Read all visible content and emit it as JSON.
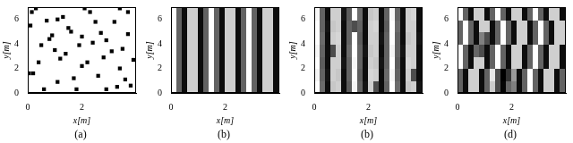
{
  "chart_data": [
    {
      "type": "scatter",
      "caption": "(a)",
      "x_label": "x[m]",
      "y_label": "y[m]",
      "xlim": [
        0,
        4
      ],
      "ylim": [
        0,
        7
      ],
      "xticks": [
        0,
        2
      ],
      "yticks": [
        0,
        2,
        4,
        6
      ],
      "grid": false,
      "color": "#000000",
      "marker": "square",
      "x": [
        0.15,
        0.1,
        0.2,
        0.05,
        0.6,
        0.8,
        0.9,
        0.7,
        1.1,
        1.3,
        1.5,
        1.0,
        1.2,
        0.4,
        1.7,
        1.8,
        2.0,
        1.9,
        2.1,
        2.3,
        2.5,
        2.7,
        2.4,
        2.9,
        3.1,
        2.8,
        2.2,
        3.4,
        3.6,
        2.9,
        3.3,
        3.8,
        3.5,
        3.7,
        3.2,
        3.7,
        3.4,
        0.5,
        1.4,
        2.6,
        1.1,
        0.3,
        3.9,
        2.0,
        1.6
      ],
      "y": [
        6.6,
        5.5,
        1.6,
        1.6,
        0.3,
        4.4,
        4.7,
        5.9,
        6.0,
        6.2,
        5.3,
        3.5,
        2.8,
        2.5,
        1.2,
        0.3,
        2.2,
        3.9,
        6.9,
        6.6,
        5.8,
        4.9,
        4.1,
        4.3,
        3.4,
        2.9,
        2.5,
        2.0,
        1.1,
        0.3,
        0.5,
        0.6,
        3.6,
        4.8,
        5.8,
        6.6,
        6.9,
        3.9,
        3.2,
        1.4,
        0.9,
        6.9,
        2.7,
        4.6,
        5.0
      ]
    },
    {
      "type": "heatmap",
      "caption": "(b)",
      "x_label": "x[m]",
      "y_label": "y[m]",
      "xlim": [
        0,
        4
      ],
      "ylim": [
        0,
        7
      ],
      "xticks": [
        0,
        2
      ],
      "yticks": [
        0,
        2,
        4,
        6
      ],
      "grid": false,
      "x_edges": [
        0,
        0.2,
        0.4,
        0.6,
        0.8,
        1.0,
        1.2,
        1.4,
        1.6,
        1.8,
        2.0,
        2.2,
        2.4,
        2.6,
        2.8,
        3.0,
        3.2,
        3.4,
        3.6,
        3.8,
        4.0
      ],
      "y_edges": [
        0,
        7
      ],
      "clim": [
        0,
        1
      ],
      "cells": [
        [
          1,
          0.39,
          0.05,
          0.81,
          0.81,
          0.05,
          0.39,
          1,
          0.39,
          0.05,
          0.81,
          0.81,
          0.05,
          0.39,
          1,
          0.39,
          0.05,
          0.81,
          0.81,
          0.05
        ]
      ]
    },
    {
      "type": "heatmap",
      "caption": "(b)",
      "x_label": "x[m]",
      "y_label": "y[m]",
      "xlim": [
        0,
        4
      ],
      "ylim": [
        0,
        7
      ],
      "xticks": [
        0,
        2
      ],
      "yticks": [
        0,
        2,
        4,
        6
      ],
      "grid": false,
      "x_edges": [
        0,
        0.2,
        0.4,
        0.6,
        0.8,
        1.0,
        1.2,
        1.4,
        1.6,
        1.8,
        2.0,
        2.2,
        2.4,
        2.6,
        2.8,
        3.0,
        3.2,
        3.4,
        3.6,
        3.8,
        4.0
      ],
      "y_edges": [
        0,
        1,
        2,
        3,
        4,
        5,
        6,
        7
      ],
      "clim": [
        0,
        1
      ],
      "cells": [
        [
          1,
          0.42,
          0.05,
          0.78,
          0.81,
          0.05,
          0.36,
          0.97,
          0.39,
          0.08,
          0.81,
          0.3,
          0.05,
          0.39,
          1,
          0.42,
          0.05,
          0.78,
          0.81,
          0.08
        ],
        [
          0.96,
          0.39,
          0.08,
          0.81,
          0.78,
          0.05,
          0.39,
          1,
          0.36,
          0.05,
          0.84,
          0.81,
          0.05,
          0.42,
          0.97,
          0.39,
          0.05,
          0.81,
          0.3,
          0.05
        ],
        [
          1,
          0.36,
          0.05,
          0.81,
          0.81,
          0.08,
          0.39,
          0.97,
          0.39,
          0.05,
          0.81,
          0.78,
          0.08,
          0.39,
          1,
          0.36,
          0.05,
          0.84,
          0.81,
          0.05
        ],
        [
          0.97,
          0.39,
          0.05,
          0.3,
          0.81,
          0.05,
          0.42,
          1,
          0.39,
          0.08,
          0.78,
          0.81,
          0.05,
          0.39,
          0.96,
          0.39,
          0.08,
          0.81,
          0.81,
          0.05
        ],
        [
          1,
          0.42,
          0.05,
          0.81,
          0.84,
          0.05,
          0.39,
          1,
          0.36,
          0.05,
          0.81,
          0.81,
          0.08,
          0.39,
          1,
          0.39,
          0.05,
          0.78,
          0.81,
          0.08
        ],
        [
          1,
          0.39,
          0.08,
          0.78,
          0.81,
          0.05,
          0.39,
          0.3,
          0.39,
          0.05,
          0.81,
          0.84,
          0.05,
          0.36,
          1,
          0.42,
          0.05,
          0.81,
          0.81,
          0.05
        ],
        [
          0.97,
          0.39,
          0.05,
          0.81,
          0.81,
          0.08,
          0.36,
          1,
          0.42,
          0.05,
          0.78,
          0.81,
          0.05,
          0.39,
          0.97,
          0.39,
          0.05,
          0.81,
          0.84,
          0.05
        ]
      ]
    },
    {
      "type": "heatmap",
      "caption": "(d)",
      "x_label": "x[m]",
      "y_label": "y[m]",
      "xlim": [
        0,
        4
      ],
      "ylim": [
        0,
        7
      ],
      "xticks": [
        0,
        2
      ],
      "yticks": [
        0,
        2,
        4,
        6
      ],
      "grid": false,
      "x_edges": [
        0,
        0.2,
        0.4,
        0.6,
        0.8,
        1.0,
        1.2,
        1.4,
        1.6,
        1.8,
        2.0,
        2.2,
        2.4,
        2.6,
        2.8,
        3.0,
        3.2,
        3.4,
        3.6,
        3.8,
        4.0
      ],
      "y_edges": [
        0,
        1,
        2,
        3,
        4,
        5,
        6,
        7
      ],
      "clim": [
        0,
        1
      ],
      "cells": [
        [
          0.39,
          0.05,
          0.81,
          0.81,
          0.05,
          0.39,
          0.8,
          0.3,
          0.02,
          0.4,
          0.5,
          0.05,
          0.39,
          1,
          0.39,
          0.05,
          0.81,
          0.81,
          0.05,
          0.39
        ],
        [
          0.39,
          0.05,
          0.81,
          0.81,
          0.05,
          0.39,
          0.9,
          0.3,
          0,
          0.2,
          0.6,
          0.05,
          0.39,
          1,
          0.39,
          0.05,
          0.81,
          0.81,
          0.05,
          0.39
        ],
        [
          1,
          0.39,
          0.05,
          0.81,
          0.81,
          0.05,
          0.39,
          1,
          0.39,
          0.05,
          0.81,
          0.81,
          0.05,
          0.39,
          1,
          0.39,
          0.05,
          0.81,
          0.81,
          0.05
        ],
        [
          1,
          0.39,
          0.05,
          0.4,
          0.3,
          0.05,
          0.39,
          1,
          0.39,
          0.05,
          0.81,
          0.81,
          0.05,
          0.39,
          1,
          0.39,
          0.05,
          0.81,
          0.81,
          0.05
        ],
        [
          0.39,
          1,
          0.39,
          0.05,
          0.5,
          0.3,
          0.05,
          0.39,
          1,
          0.39,
          0.05,
          0.81,
          0.81,
          0.05,
          0.39,
          1,
          0.39,
          0.05,
          0.81,
          0.81
        ],
        [
          0.39,
          1,
          0.39,
          0.05,
          0.81,
          0.81,
          0.05,
          0.39,
          1,
          0.39,
          0.05,
          0.81,
          0.81,
          0.05,
          0.39,
          1,
          0.39,
          0.05,
          0.81,
          0.81
        ],
        [
          1,
          0.39,
          0.05,
          0.81,
          0.81,
          0.05,
          0.39,
          1,
          0.39,
          0.05,
          0.81,
          0.81,
          0.05,
          0.39,
          1,
          0.39,
          0.05,
          0.81,
          0.81,
          0.05
        ]
      ]
    }
  ]
}
